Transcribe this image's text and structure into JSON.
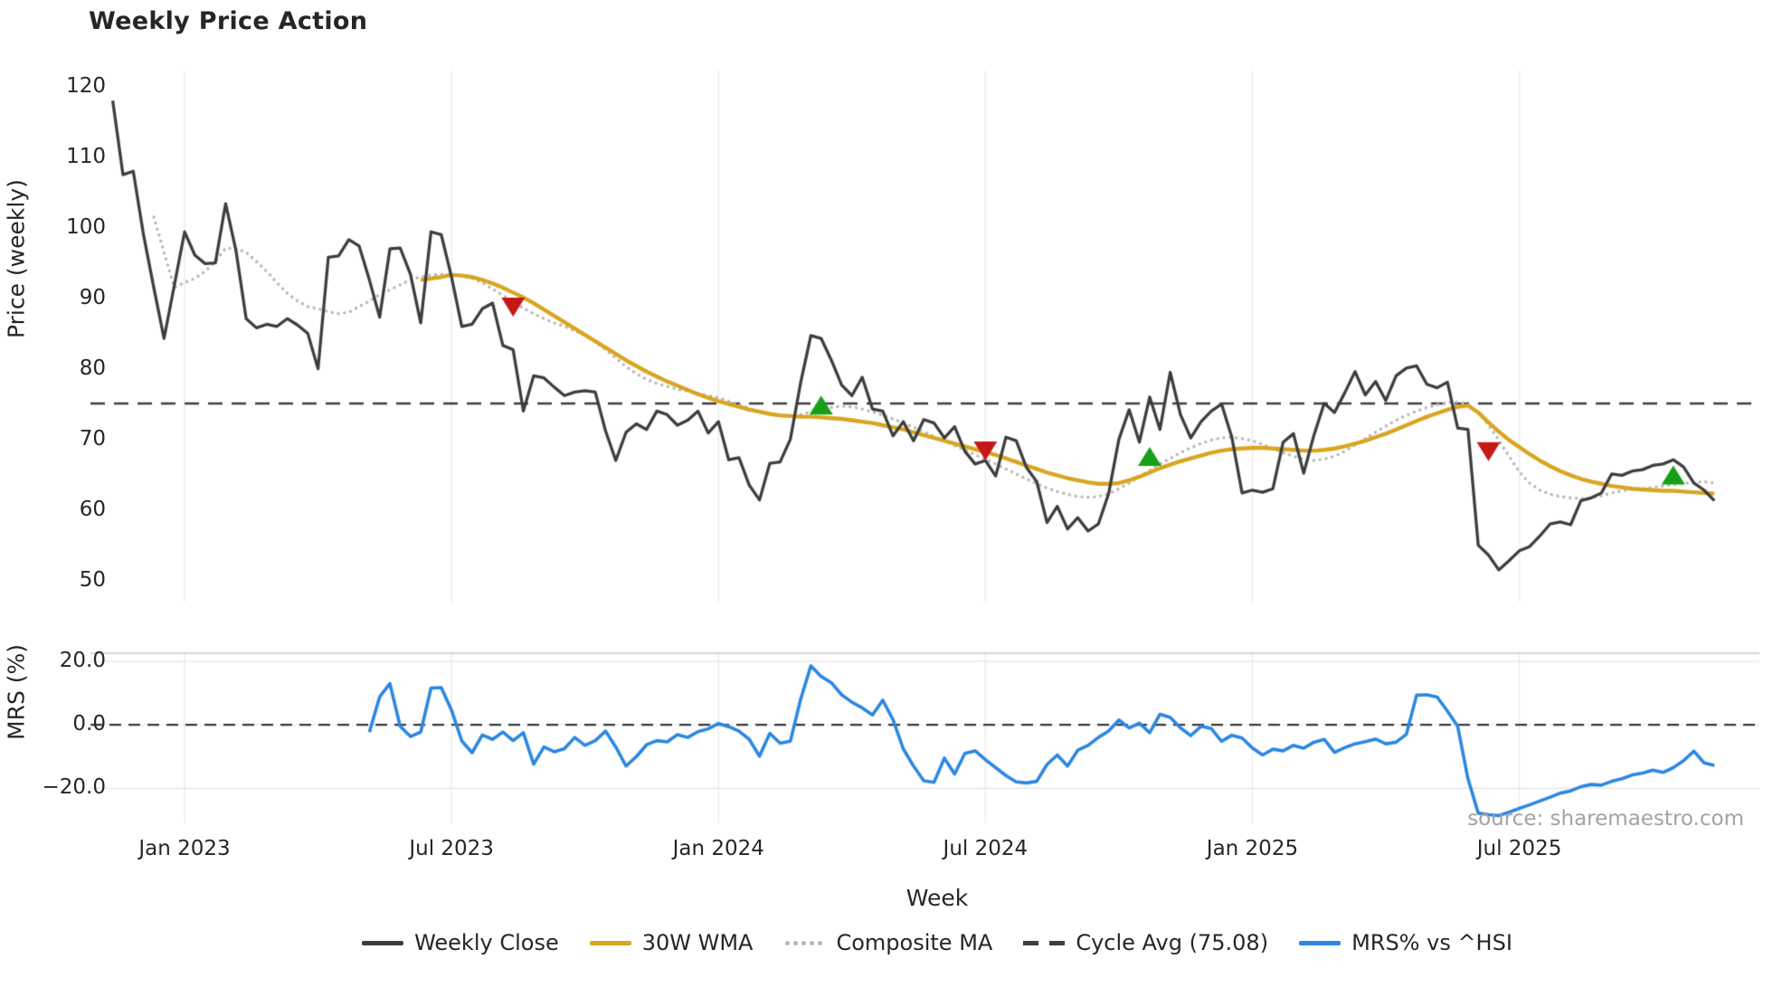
{
  "chart": {
    "title": "Weekly Price Action",
    "source_credit": "source: sharemaestro.com"
  },
  "chart_data": {
    "type": "line",
    "title": "Weekly Price Action",
    "xlabel": "Week",
    "x_ticks": {
      "labels": [
        "Jan 2023",
        "Jul 2023",
        "Jan 2024",
        "Jul 2024",
        "Jan 2025",
        "Jul 2025"
      ],
      "week_index": [
        7,
        33,
        59,
        85,
        111,
        137
      ]
    },
    "top_panel": {
      "ylabel": "Price (weekly)",
      "tick_labels": [
        "120",
        "110",
        "100",
        "90",
        "80",
        "70",
        "60",
        "50"
      ],
      "tick_values": [
        120,
        110,
        100,
        90,
        80,
        70,
        60,
        50
      ],
      "ylim": [
        47,
        122
      ],
      "cycle_avg": 75.08
    },
    "bottom_panel": {
      "ylabel": "MRS (%)",
      "tick_labels": [
        "20.0",
        "0.0",
        "−20.0"
      ],
      "tick_values": [
        20,
        0,
        -20
      ],
      "ylim": [
        -31,
        22.5
      ],
      "zero_line": 0
    },
    "series": [
      {
        "name": "Weekly Close",
        "panel": "top",
        "style": "solid",
        "color": "#3d3d3d",
        "width": 3.3,
        "start_week": 0,
        "values": [
          118,
          107.5,
          108,
          99,
          91.5,
          84.3,
          91.8,
          99.4,
          96.1,
          94.9,
          95.0,
          103.4,
          96.8,
          87.1,
          85.8,
          86.3,
          86.0,
          87.1,
          86.2,
          85.0,
          80.0,
          95.8,
          96.0,
          98.3,
          97.4,
          92.6,
          87.3,
          97.0,
          97.1,
          93.4,
          86.5,
          99.4,
          99.0,
          93.0,
          86.0,
          86.3,
          88.5,
          89.3,
          83.3,
          82.7,
          74.0,
          79.0,
          78.7,
          77.4,
          76.2,
          76.7,
          76.9,
          76.7,
          71.2,
          67.0,
          71.0,
          72.2,
          71.4,
          74.0,
          73.5,
          72.0,
          72.7,
          74.0,
          70.9,
          72.5,
          67.1,
          67.4,
          63.5,
          61.4,
          66.6,
          66.8,
          70.0,
          78.0,
          84.7,
          84.3,
          81.2,
          77.7,
          76.2,
          78.8,
          74.3,
          74.0,
          70.5,
          72.5,
          69.8,
          72.8,
          72.3,
          70.2,
          71.8,
          68.3,
          66.5,
          67.0,
          64.8,
          70.3,
          69.8,
          66.0,
          64.0,
          58.2,
          60.5,
          57.3,
          58.9,
          57.0,
          58.0,
          62.3,
          70.0,
          74.2,
          69.6,
          76.0,
          71.4,
          79.5,
          73.5,
          70.2,
          72.5,
          74.0,
          75.0,
          70.3,
          62.4,
          62.8,
          62.5,
          63.0,
          69.6,
          70.8,
          65.2,
          70.6,
          75.1,
          73.8,
          76.6,
          79.6,
          76.3,
          78.2,
          75.5,
          79.0,
          80.1,
          80.4,
          77.8,
          77.3,
          78.1,
          71.6,
          71.4,
          55.0,
          53.6,
          51.5,
          52.8,
          54.2,
          54.8,
          56.3,
          58.0,
          58.3,
          57.9,
          61.3,
          61.7,
          62.4,
          65.1,
          64.9,
          65.5,
          65.7,
          66.3,
          66.5,
          67.1,
          66.1,
          63.8,
          62.8,
          61.3
        ]
      },
      {
        "name": "30W WMA",
        "panel": "top",
        "style": "solid",
        "color": "#d9a521",
        "width": 4.4,
        "start_week": 30,
        "values": [
          92.6,
          92.8,
          93.0,
          93.3,
          93.2,
          93.0,
          92.6,
          92.1,
          91.5,
          90.8,
          90.1,
          89.3,
          88.4,
          87.5,
          86.6,
          85.7,
          84.8,
          83.9,
          83.0,
          82.1,
          81.2,
          80.4,
          79.6,
          78.9,
          78.2,
          77.6,
          77.0,
          76.4,
          75.9,
          75.4,
          75.0,
          74.6,
          74.2,
          73.9,
          73.6,
          73.4,
          73.3,
          73.2,
          73.2,
          73.1,
          73.0,
          72.9,
          72.7,
          72.5,
          72.3,
          72.0,
          71.7,
          71.4,
          71.0,
          70.6,
          70.2,
          69.8,
          69.4,
          69.0,
          68.6,
          68.2,
          67.8,
          67.3,
          66.8,
          66.3,
          65.8,
          65.3,
          64.9,
          64.5,
          64.2,
          63.9,
          63.7,
          63.7,
          63.8,
          64.2,
          64.7,
          65.3,
          65.9,
          66.4,
          66.9,
          67.3,
          67.7,
          68.1,
          68.4,
          68.6,
          68.7,
          68.8,
          68.8,
          68.7,
          68.6,
          68.5,
          68.4,
          68.4,
          68.5,
          68.7,
          69.0,
          69.4,
          69.8,
          70.3,
          70.8,
          71.4,
          72.0,
          72.6,
          73.2,
          73.7,
          74.2,
          74.6,
          74.8,
          73.8,
          72.4,
          71.1,
          69.9,
          68.9,
          67.9,
          67.0,
          66.2,
          65.5,
          64.9,
          64.4,
          64.0,
          63.7,
          63.4,
          63.2,
          63.0,
          62.9,
          62.8,
          62.7,
          62.7,
          62.6,
          62.5,
          62.4,
          62.3
        ]
      },
      {
        "name": "Composite MA",
        "panel": "top",
        "style": "dotted",
        "color": "#b8b8b8",
        "width": 3.4,
        "start_week": 4,
        "values": [
          101.5,
          96.5,
          91.5,
          92.2,
          92.8,
          93.8,
          95.2,
          97.1,
          97.0,
          96.5,
          95.2,
          93.8,
          92.2,
          90.7,
          89.6,
          88.8,
          88.5,
          88.1,
          87.8,
          88.0,
          88.8,
          89.6,
          90.5,
          91.2,
          91.9,
          92.6,
          93.0,
          93.3,
          93.4,
          93.4,
          93.2,
          92.8,
          92.2,
          91.3,
          90.4,
          89.5,
          88.6,
          87.8,
          87.1,
          86.5,
          86.0,
          85.4,
          84.7,
          83.8,
          82.7,
          81.5,
          80.3,
          79.3,
          78.5,
          77.9,
          77.5,
          77.1,
          76.8,
          76.5,
          76.2,
          75.9,
          75.4,
          74.9,
          74.4,
          73.9,
          73.5,
          73.3,
          73.3,
          73.5,
          73.9,
          74.2,
          74.5,
          74.7,
          74.6,
          74.3,
          73.9,
          73.4,
          72.9,
          72.3,
          71.7,
          71.1,
          70.4,
          69.8,
          69.1,
          68.5,
          67.8,
          67.2,
          66.5,
          65.8,
          65.1,
          64.4,
          63.7,
          63.1,
          62.6,
          62.2,
          61.9,
          61.8,
          61.9,
          62.3,
          63.0,
          63.8,
          64.7,
          65.6,
          66.5,
          67.3,
          68.1,
          68.8,
          69.4,
          69.9,
          70.2,
          70.3,
          70.1,
          69.8,
          69.3,
          68.7,
          68.1,
          67.6,
          67.2,
          67.0,
          67.2,
          67.6,
          68.3,
          69.2,
          70.1,
          71.0,
          71.9,
          72.7,
          73.4,
          74.0,
          74.5,
          74.9,
          75.2,
          75.3,
          74.9,
          73.8,
          72.0,
          69.9,
          67.6,
          65.4,
          63.8,
          62.8,
          62.2,
          61.9,
          61.7,
          61.6,
          61.7,
          62.0,
          62.4,
          62.7,
          62.9,
          63.0,
          63.2,
          63.4,
          63.6,
          63.8,
          63.9,
          64.0,
          63.8
        ]
      },
      {
        "name": "MRS% vs ^HSI",
        "panel": "bottom",
        "style": "solid",
        "color": "#2b87e0",
        "width": 3.6,
        "start_week": 25,
        "values": [
          -2.3,
          8.8,
          12.9,
          -0.5,
          -3.7,
          -2.3,
          11.5,
          11.7,
          4.6,
          -5.1,
          -8.8,
          -3.2,
          -4.6,
          -2.3,
          -5.0,
          -2.5,
          -12.4,
          -7.0,
          -8.5,
          -7.5,
          -4.0,
          -6.5,
          -5.0,
          -2.0,
          -7.0,
          -13.0,
          -10.0,
          -6.3,
          -5.0,
          -5.4,
          -3.1,
          -4.0,
          -2.2,
          -1.3,
          0.4,
          -0.6,
          -2.0,
          -4.6,
          -9.9,
          -2.7,
          -5.8,
          -5.2,
          8.0,
          18.5,
          15.2,
          13.2,
          9.4,
          7.1,
          5.3,
          3.1,
          7.7,
          1.6,
          -7.6,
          -13.0,
          -17.6,
          -18.1,
          -10.5,
          -15.5,
          -9.0,
          -8.2,
          -11.0,
          -13.5,
          -16.0,
          -18.0,
          -18.3,
          -17.8,
          -12.5,
          -9.5,
          -13.0,
          -8.0,
          -6.5,
          -4.0,
          -2.0,
          1.5,
          -1.0,
          0.5,
          -2.5,
          3.3,
          2.3,
          -1.0,
          -3.4,
          -0.5,
          -1.2,
          -5.2,
          -3.3,
          -4.2,
          -7.3,
          -9.5,
          -7.7,
          -8.2,
          -6.5,
          -7.4,
          -5.5,
          -4.6,
          -8.7,
          -7.2,
          -6.0,
          -5.3,
          -4.5,
          -6.0,
          -5.5,
          -3.0,
          9.3,
          9.4,
          8.7,
          4.3,
          -0.5,
          -17.0,
          -27.8,
          -28.3,
          -28.6,
          -27.5,
          -26.3,
          -25.2,
          -24.0,
          -22.8,
          -21.5,
          -20.8,
          -19.5,
          -18.8,
          -19.0,
          -17.8,
          -17.0,
          -15.8,
          -15.2,
          -14.3,
          -15.0,
          -13.5,
          -11.3,
          -8.3,
          -12.0,
          -12.8
        ]
      }
    ],
    "markers": {
      "sell": {
        "shape": "triangle-down",
        "color": "#c61818",
        "points": [
          [
            39,
            88.8
          ],
          [
            85,
            68.4
          ],
          [
            134,
            68.3
          ]
        ]
      },
      "buy": {
        "shape": "triangle-up",
        "color": "#17a017",
        "points": [
          [
            69,
            74.8
          ],
          [
            101,
            67.5
          ],
          [
            152,
            64.9
          ]
        ]
      }
    },
    "legend": [
      {
        "label": "Weekly Close",
        "color": "#3d3d3d",
        "style": "solid"
      },
      {
        "label": "30W WMA",
        "color": "#d9a521",
        "style": "solid"
      },
      {
        "label": "Composite MA",
        "color": "#b8b8b8",
        "style": "dotted"
      },
      {
        "label": "Cycle Avg (75.08)",
        "color": "#3f3f3f",
        "style": "dashed"
      },
      {
        "label": "MRS% vs ^HSI",
        "color": "#2b87e0",
        "style": "solid"
      }
    ]
  }
}
